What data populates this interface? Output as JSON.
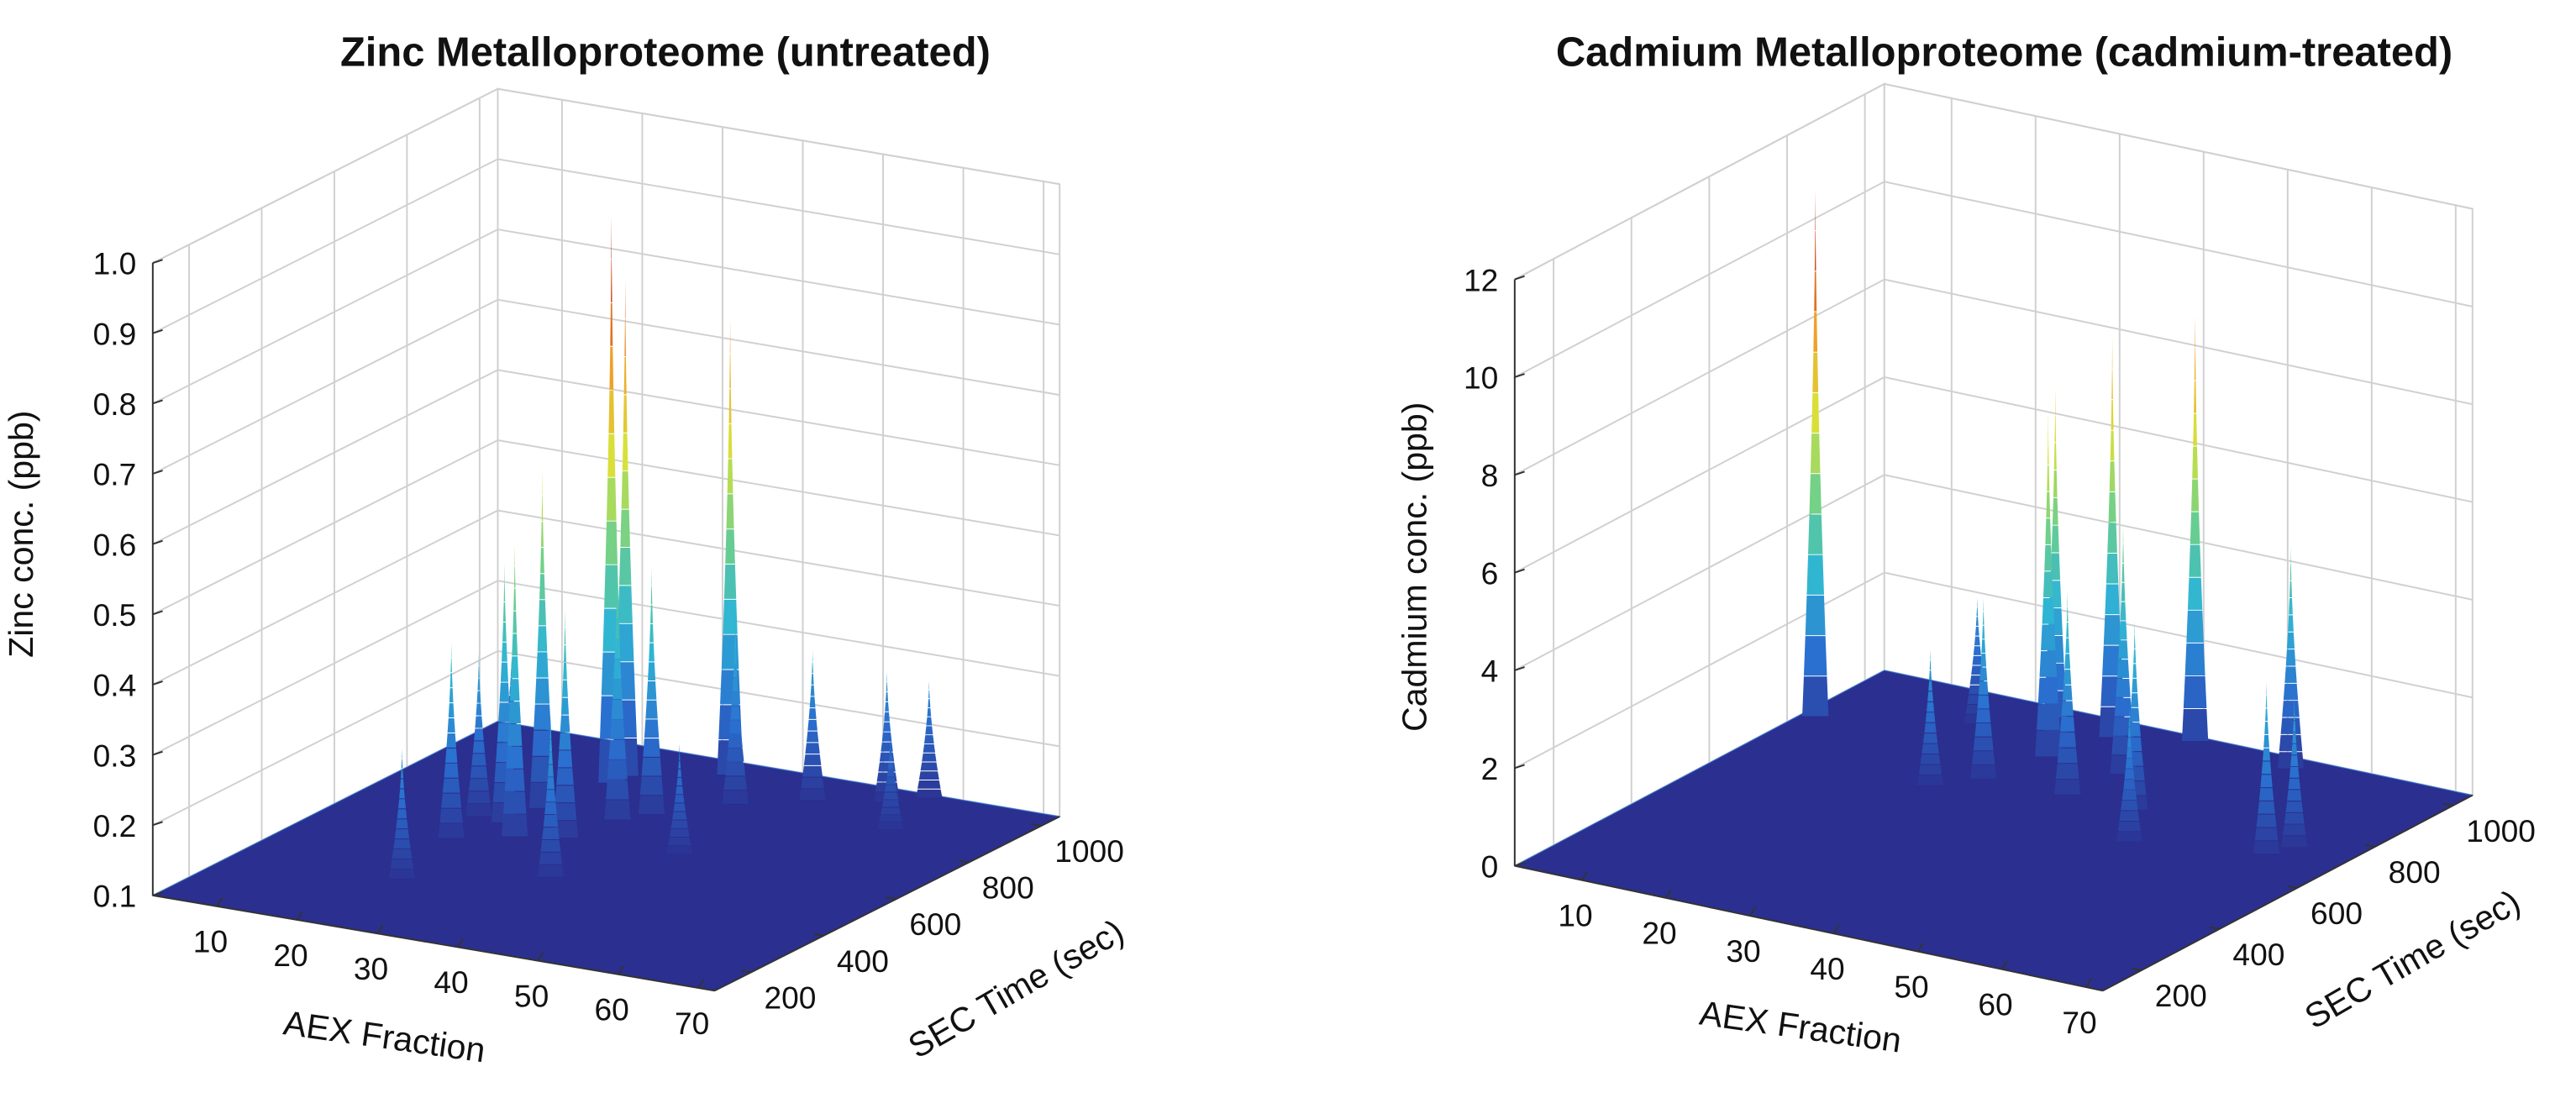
{
  "chart_data": [
    {
      "type": "surface3d",
      "title": "Zinc Metalloproteome (untreated)",
      "xlabel": "AEX Fraction",
      "ylabel": "SEC Time (sec)",
      "zlabel": "Zinc conc. (ppb)",
      "xlim": [
        2,
        72
      ],
      "ylim": [
        100,
        1050
      ],
      "zlim": [
        0.1,
        1.0
      ],
      "xticks": [
        10,
        20,
        30,
        40,
        50,
        60,
        70
      ],
      "yticks": [
        200,
        400,
        600,
        800,
        1000
      ],
      "zticks": [
        0.1,
        0.2,
        0.3,
        0.4,
        0.5,
        0.6,
        0.7,
        0.8,
        0.9,
        {
          "value": 1,
          "label": "1.0"
        }
      ],
      "grid": true,
      "colormap": [
        "#2b2f8f",
        "#2a6fd0",
        "#2fb5d4",
        "#6fd08a",
        "#d7e23a",
        "#f0a92a",
        "#d84a1c",
        "#8e1212"
      ],
      "x": [
        32,
        31,
        40,
        27,
        25,
        29,
        35,
        37,
        33,
        42,
        22,
        20,
        48,
        55,
        58,
        38,
        15,
        24,
        45,
        60
      ],
      "y": [
        700,
        760,
        850,
        620,
        560,
        500,
        650,
        700,
        550,
        820,
        480,
        600,
        900,
        950,
        1000,
        400,
        800,
        300,
        600,
        850
      ],
      "values": [
        0.97,
        0.86,
        0.8,
        0.62,
        0.5,
        0.55,
        0.5,
        0.48,
        0.45,
        0.38,
        0.4,
        0.35,
        0.33,
        0.3,
        0.28,
        0.35,
        0.28,
        0.3,
        0.27,
        0.25
      ]
    },
    {
      "type": "surface3d",
      "title": "Cadmium Metalloproteome (cadmium-treated)",
      "xlabel": "AEX Fraction",
      "ylabel": "SEC Time (sec)",
      "zlabel": "Cadmium conc. (ppb)",
      "xlim": [
        2,
        72
      ],
      "ylim": [
        100,
        1050
      ],
      "zlim": [
        0,
        12
      ],
      "xticks": [
        10,
        20,
        30,
        40,
        50,
        60,
        70
      ],
      "yticks": [
        200,
        400,
        600,
        800,
        1000
      ],
      "zticks": [
        0,
        2,
        4,
        6,
        8,
        10,
        12
      ],
      "grid": true,
      "colormap": [
        "#2b2f8f",
        "#2a6fd0",
        "#2fb5d4",
        "#6fd08a",
        "#d7e23a",
        "#f0a92a",
        "#d84a1c",
        "#8e1212"
      ],
      "x": [
        10,
        33,
        34,
        37,
        45,
        55,
        42,
        40,
        48,
        30,
        66,
        67,
        20,
        26,
        52
      ],
      "y": [
        700,
        820,
        780,
        880,
        920,
        950,
        800,
        700,
        700,
        700,
        650,
        700,
        900,
        650,
        600
      ],
      "values": [
        11.6,
        7.9,
        7.6,
        8.8,
        9.4,
        4.9,
        5.5,
        4.5,
        4.2,
        4.0,
        3.8,
        3.3,
        2.8,
        3.0,
        3.0
      ]
    }
  ]
}
